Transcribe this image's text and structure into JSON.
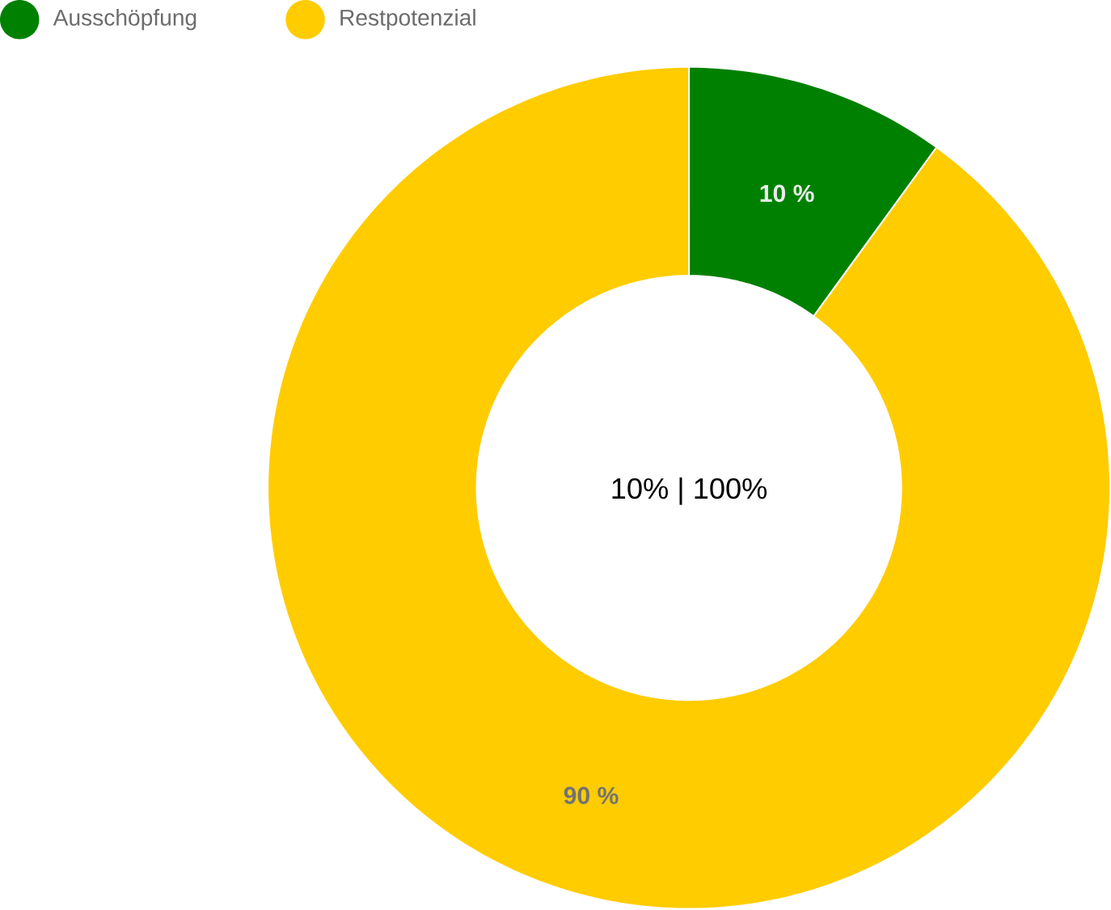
{
  "chart_data": {
    "type": "donut",
    "categories": [
      "Ausschöpfung",
      "Restpotenzial"
    ],
    "values": [
      10,
      90
    ],
    "colors": [
      "#008000",
      "#ffcc00"
    ],
    "value_labels": [
      "10 %",
      "90 %"
    ],
    "legend": "top left",
    "annotations": [
      "10%  |  100%"
    ]
  }
}
